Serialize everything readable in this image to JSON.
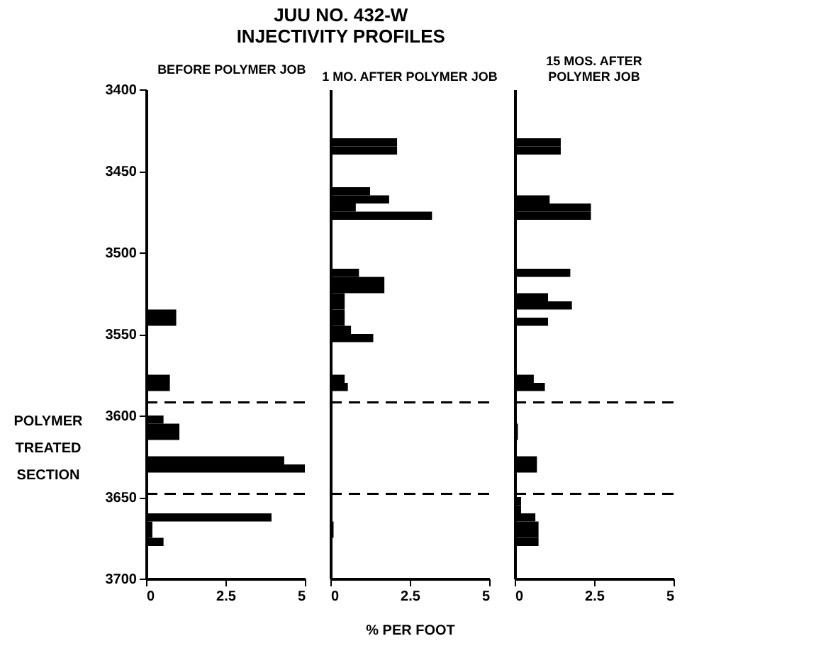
{
  "chart_data": [
    {
      "type": "bar",
      "orientation": "horizontal",
      "title": "JUU NO. 432-W\nINJECTIVITY PROFILES",
      "subtitle": "BEFORE POLYMER JOB",
      "x": [
        3537.5,
        3542.5,
        3577.5,
        3582.5,
        3602.5,
        3607.5,
        3612.5,
        3627.5,
        3632.5,
        3662.5,
        3667.5,
        3672.5,
        3677.5
      ],
      "values": [
        0.95,
        0.95,
        0.75,
        0.75,
        0.55,
        1.05,
        1.05,
        4.35,
        5.0,
        3.95,
        0.2,
        0.2,
        0.55
      ],
      "color": "#000000",
      "xlim": [
        0,
        5
      ],
      "xticks": [
        0,
        2.5,
        5
      ],
      "ylim": [
        3700,
        3400
      ],
      "yticks": [
        3400,
        3450,
        3500,
        3550,
        3600,
        3650,
        3700
      ],
      "ref_lines": [
        {
          "axis": "y",
          "value": 3592,
          "line_style": "dashed"
        },
        {
          "axis": "y",
          "value": 3648,
          "line_style": "dashed"
        }
      ],
      "annotations": [
        "POLYMER\nTREATED\nSECTION"
      ],
      "grid": false
    },
    {
      "type": "bar",
      "orientation": "horizontal",
      "subtitle": "1 MO. AFTER POLYMER JOB",
      "xlabel": "% PER FOOT",
      "x": [
        3432.5,
        3437.5,
        3462.5,
        3467.5,
        3472.5,
        3477.5,
        3512.5,
        3517.5,
        3522.5,
        3527.5,
        3532.5,
        3537.5,
        3542.5,
        3547.5,
        3552.5,
        3577.5,
        3582.5,
        3667.5,
        3672.5
      ],
      "values": [
        2.1,
        2.1,
        1.25,
        1.85,
        0.8,
        3.2,
        0.9,
        1.7,
        1.7,
        0.45,
        0.45,
        0.45,
        0.45,
        0.65,
        1.35,
        0.45,
        0.55,
        0.1,
        0.1
      ],
      "color": "#000000",
      "xlim": [
        0,
        5
      ],
      "xticks": [
        0,
        2.5,
        5
      ],
      "ylim": [
        3700,
        3400
      ],
      "tick_labels": "x",
      "ref_lines": [
        {
          "axis": "y",
          "value": 3592,
          "line_style": "dashed"
        },
        {
          "axis": "y",
          "value": 3648,
          "line_style": "dashed"
        }
      ],
      "grid": false
    },
    {
      "type": "bar",
      "orientation": "horizontal",
      "subtitle": "15 MOS. AFTER\nPOLYMER JOB",
      "x": [
        3432.5,
        3437.5,
        3467.5,
        3472.5,
        3477.5,
        3512.5,
        3527.5,
        3532.5,
        3542.5,
        3577.5,
        3582.5,
        3607.5,
        3612.5,
        3627.5,
        3632.5,
        3652.5,
        3657.5,
        3662.5,
        3667.5,
        3672.5,
        3677.5
      ],
      "values": [
        1.45,
        1.45,
        1.1,
        2.4,
        2.4,
        1.75,
        1.05,
        1.8,
        1.05,
        0.6,
        0.95,
        0.1,
        0.1,
        0.7,
        0.7,
        0.2,
        0.2,
        0.65,
        0.75,
        0.75,
        0.75
      ],
      "color": "#000000",
      "xlim": [
        0,
        5
      ],
      "xticks": [
        0,
        2.5,
        5
      ],
      "ylim": [
        3700,
        3400
      ],
      "tick_labels": "x",
      "ref_lines": [
        {
          "axis": "y",
          "value": 3592,
          "line_style": "dashed"
        },
        {
          "axis": "y",
          "value": 3648,
          "line_style": "dashed"
        }
      ],
      "grid": false
    }
  ]
}
